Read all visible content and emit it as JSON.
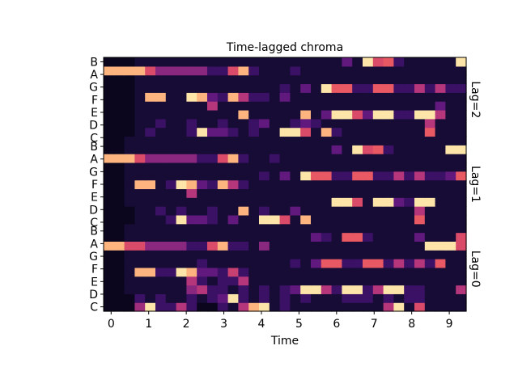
{
  "chart_data": {
    "type": "heatmap",
    "title": "Time-lagged chroma",
    "xlabel": "Time",
    "ylabel": "",
    "colormap": "magma",
    "x_ticks": [
      "0",
      "1",
      "2",
      "3",
      "4",
      "5",
      "6",
      "7",
      "8",
      "9"
    ],
    "x_range": [
      -0.2,
      9.45
    ],
    "y_tick_labels": [
      "C",
      "D",
      "E",
      "F",
      "G",
      "A",
      "B"
    ],
    "panels": [
      {
        "name": "Lag=0"
      },
      {
        "name": "Lag=1"
      },
      {
        "name": "Lag=2"
      }
    ],
    "grid": false,
    "rows": [
      [
        0.05,
        0.05,
        0.05,
        0.45,
        0.95,
        0.2,
        0.2,
        0.5,
        0.2,
        0.05,
        0.05,
        0.2,
        0.1,
        0.5,
        0.85,
        0.95,
        0.1,
        0.2,
        0.1,
        0.1,
        0.1,
        0.1,
        0.1,
        0.1,
        0.1,
        0.1,
        0.1,
        0.5,
        0.95,
        0.1,
        0.6,
        0.1,
        0.1,
        0.1,
        0.1
      ],
      [
        0.05,
        0.05,
        0.05,
        0.2,
        0.1,
        0.2,
        0.1,
        0.1,
        0.2,
        0.1,
        0.2,
        0.3,
        0.95,
        0.2,
        0.1,
        0.2,
        0.1,
        0.2,
        0.1,
        0.2,
        0.1,
        0.1,
        0.1,
        0.2,
        0.2,
        0.2,
        0.1,
        0.2,
        0.1,
        0.2,
        0.2,
        0.1,
        0.1,
        0.1,
        0.1
      ],
      [
        0.05,
        0.05,
        0.1,
        0.1,
        0.1,
        0.1,
        0.1,
        0.1,
        0.4,
        0.5,
        0.2,
        0.2,
        0.1,
        0.2,
        0.1,
        0.2,
        0.1,
        0.2,
        0.3,
        0.95,
        0.95,
        0.5,
        0.2,
        0.95,
        0.95,
        0.2,
        0.5,
        0.95,
        0.95,
        0.2,
        0.2,
        0.1,
        0.1,
        0.1,
        0.5
      ],
      [
        0.05,
        0.05,
        0.1,
        0.1,
        0.1,
        0.1,
        0.1,
        0.1,
        0.5,
        0.2,
        0.1,
        0.2,
        0.2,
        0.5,
        0.1,
        0.1,
        0.1,
        0.1,
        0.1,
        0.1,
        0.1,
        0.1,
        0.1,
        0.1,
        0.1,
        0.1,
        0.1,
        0.1,
        0.1,
        0.1,
        0.1,
        0.1,
        0.1,
        0.1,
        0.1
      ],
      [
        0.05,
        0.05,
        0.1,
        0.85,
        0.85,
        0.2,
        0.2,
        0.95,
        0.85,
        0.3,
        0.3,
        0.2,
        0.55,
        0.2,
        0.1,
        0.1,
        0.1,
        0.1,
        0.1,
        0.1,
        0.1,
        0.1,
        0.1,
        0.1,
        0.1,
        0.1,
        0.1,
        0.1,
        0.1,
        0.1,
        0.1,
        0.1,
        0.1,
        0.1,
        0.1
      ],
      [
        0.05,
        0.05,
        0.1,
        0.1,
        0.1,
        0.1,
        0.1,
        0.1,
        0.1,
        0.2,
        0.1,
        0.1,
        0.1,
        0.1,
        0.1,
        0.1,
        0.1,
        0.1,
        0.2,
        0.1,
        0.3,
        0.65,
        0.65,
        0.2,
        0.2,
        0.65,
        0.65,
        0.2,
        0.5,
        0.2,
        0.5,
        0.2,
        0.65,
        0.1,
        0.1
      ],
      [
        0.05,
        0.05,
        0.1,
        0.1,
        0.1,
        0.1,
        0.1,
        0.1,
        0.1,
        0.1,
        0.1,
        0.1,
        0.1,
        0.1,
        0.1,
        0.1,
        0.1,
        0.1,
        0.1,
        0.1,
        0.1,
        0.1,
        0.1,
        0.1,
        0.1,
        0.1,
        0.1,
        0.1,
        0.1,
        0.1,
        0.1,
        0.1,
        0.1,
        0.1,
        0.1
      ],
      [
        0.85,
        0.85,
        0.6,
        0.6,
        0.4,
        0.4,
        0.4,
        0.4,
        0.2,
        0.2,
        0.6,
        0.85,
        0.2,
        0.2,
        0.1,
        0.4,
        0.1,
        0.1,
        0.1,
        0.1,
        0.1,
        0.1,
        0.1,
        0.1,
        0.1,
        0.1,
        0.1,
        0.1,
        0.1,
        0.1,
        0.1,
        0.95,
        0.95,
        0.95,
        0.6
      ],
      [
        0.05,
        0.05,
        0.1,
        0.1,
        0.1,
        0.1,
        0.1,
        0.1,
        0.1,
        0.1,
        0.1,
        0.1,
        0.1,
        0.1,
        0.1,
        0.1,
        0.1,
        0.1,
        0.1,
        0.1,
        0.3,
        0.2,
        0.1,
        0.65,
        0.65,
        0.2,
        0.1,
        0.1,
        0.1,
        0.1,
        0.3,
        0.1,
        0.1,
        0.1,
        0.6
      ],
      [
        0.05,
        0.05,
        0.1,
        0.1,
        0.1,
        0.1,
        0.1,
        0.1,
        0.1,
        0.1,
        0.1,
        0.1,
        0.1,
        0.1,
        0.1,
        0.1,
        0.1,
        0.1,
        0.1,
        0.1,
        0.1,
        0.1,
        0.1,
        0.1,
        0.1,
        0.1,
        0.1,
        0.1,
        0.1,
        0.1,
        0.1,
        0.1,
        0.1,
        0.1,
        0.1
      ],
      [
        0.05,
        0.05,
        0.05,
        0.1,
        0.1,
        0.1,
        0.2,
        0.95,
        0.3,
        0.3,
        0.2,
        0.1,
        0.3,
        0.1,
        0.1,
        0.95,
        0.95,
        0.6,
        0.1,
        0.85,
        0.1,
        0.1,
        0.1,
        0.1,
        0.1,
        0.1,
        0.1,
        0.1,
        0.1,
        0.1,
        0.65,
        0.1,
        0.1,
        0.1,
        0.1
      ],
      [
        0.05,
        0.05,
        0.05,
        0.1,
        0.1,
        0.2,
        0.1,
        0.2,
        0.1,
        0.1,
        0.2,
        0.1,
        0.1,
        0.85,
        0.1,
        0.2,
        0.1,
        0.1,
        0.3,
        0.1,
        0.1,
        0.1,
        0.1,
        0.1,
        0.1,
        0.1,
        0.1,
        0.1,
        0.1,
        0.1,
        0.5,
        0.1,
        0.1,
        0.1,
        0.1
      ],
      [
        0.05,
        0.05,
        0.1,
        0.1,
        0.1,
        0.1,
        0.1,
        0.1,
        0.1,
        0.1,
        0.1,
        0.1,
        0.1,
        0.1,
        0.1,
        0.1,
        0.1,
        0.1,
        0.1,
        0.1,
        0.1,
        0.1,
        0.95,
        0.95,
        0.6,
        0.1,
        0.95,
        0.95,
        0.3,
        0.2,
        0.95,
        0.95,
        0.1,
        0.1,
        0.1
      ],
      [
        0.05,
        0.05,
        0.1,
        0.1,
        0.1,
        0.1,
        0.1,
        0.1,
        0.5,
        0.1,
        0.1,
        0.1,
        0.1,
        0.1,
        0.1,
        0.1,
        0.1,
        0.1,
        0.1,
        0.1,
        0.1,
        0.1,
        0.1,
        0.1,
        0.1,
        0.1,
        0.1,
        0.1,
        0.1,
        0.1,
        0.1,
        0.1,
        0.1,
        0.1,
        0.1
      ],
      [
        0.05,
        0.05,
        0.1,
        0.85,
        0.85,
        0.1,
        0.2,
        0.95,
        0.85,
        0.3,
        0.2,
        0.85,
        0.5,
        0.2,
        0.1,
        0.1,
        0.1,
        0.1,
        0.1,
        0.1,
        0.1,
        0.1,
        0.1,
        0.1,
        0.1,
        0.1,
        0.1,
        0.1,
        0.1,
        0.1,
        0.1,
        0.1,
        0.1,
        0.1,
        0.1
      ],
      [
        0.05,
        0.05,
        0.1,
        0.1,
        0.1,
        0.1,
        0.1,
        0.1,
        0.1,
        0.1,
        0.1,
        0.1,
        0.1,
        0.1,
        0.1,
        0.2,
        0.1,
        0.3,
        0.1,
        0.95,
        0.65,
        0.65,
        0.2,
        0.2,
        0.65,
        0.65,
        0.2,
        0.2,
        0.5,
        0.2,
        0.5,
        0.2,
        0.2,
        0.3,
        0.65
      ],
      [
        0.05,
        0.05,
        0.1,
        0.1,
        0.1,
        0.1,
        0.1,
        0.1,
        0.1,
        0.1,
        0.1,
        0.1,
        0.1,
        0.1,
        0.1,
        0.1,
        0.1,
        0.1,
        0.1,
        0.1,
        0.1,
        0.1,
        0.1,
        0.1,
        0.1,
        0.1,
        0.1,
        0.1,
        0.1,
        0.1,
        0.1,
        0.1,
        0.1,
        0.1,
        0.1
      ],
      [
        0.85,
        0.85,
        0.85,
        0.6,
        0.4,
        0.4,
        0.4,
        0.4,
        0.4,
        0.2,
        0.2,
        0.6,
        0.85,
        0.2,
        0.1,
        0.1,
        0.2,
        0.1,
        0.1,
        0.1,
        0.1,
        0.1,
        0.1,
        0.1,
        0.1,
        0.1,
        0.1,
        0.1,
        0.1,
        0.1,
        0.1,
        0.1,
        0.1,
        0.1,
        0.1
      ],
      [
        0.05,
        0.05,
        0.1,
        0.1,
        0.1,
        0.1,
        0.1,
        0.1,
        0.1,
        0.1,
        0.1,
        0.1,
        0.1,
        0.1,
        0.1,
        0.1,
        0.1,
        0.1,
        0.1,
        0.1,
        0.1,
        0.1,
        0.3,
        0.1,
        0.95,
        0.6,
        0.65,
        0.2,
        0.1,
        0.1,
        0.1,
        0.1,
        0.1,
        0.95,
        0.95
      ],
      [
        0.05,
        0.05,
        0.1,
        0.1,
        0.1,
        0.1,
        0.1,
        0.1,
        0.1,
        0.1,
        0.1,
        0.1,
        0.1,
        0.1,
        0.1,
        0.1,
        0.1,
        0.1,
        0.1,
        0.1,
        0.1,
        0.1,
        0.1,
        0.1,
        0.1,
        0.1,
        0.1,
        0.1,
        0.1,
        0.1,
        0.1,
        0.1,
        0.1,
        0.1,
        0.1
      ],
      [
        0.05,
        0.05,
        0.05,
        0.1,
        0.2,
        0.1,
        0.1,
        0.1,
        0.2,
        0.95,
        0.3,
        0.3,
        0.2,
        0.1,
        0.2,
        0.1,
        0.1,
        0.95,
        0.95,
        0.6,
        0.1,
        0.85,
        0.2,
        0.1,
        0.1,
        0.1,
        0.1,
        0.1,
        0.1,
        0.1,
        0.1,
        0.65,
        0.1,
        0.1,
        0.1
      ],
      [
        0.05,
        0.05,
        0.05,
        0.1,
        0.1,
        0.2,
        0.1,
        0.1,
        0.2,
        0.1,
        0.1,
        0.2,
        0.1,
        0.1,
        0.2,
        0.3,
        0.1,
        0.1,
        0.2,
        0.3,
        0.2,
        0.1,
        0.1,
        0.1,
        0.1,
        0.1,
        0.1,
        0.1,
        0.1,
        0.1,
        0.1,
        0.5,
        0.1,
        0.1,
        0.1
      ],
      [
        0.05,
        0.05,
        0.05,
        0.1,
        0.1,
        0.1,
        0.1,
        0.1,
        0.1,
        0.1,
        0.1,
        0.1,
        0.1,
        0.85,
        0.1,
        0.1,
        0.1,
        0.1,
        0.1,
        0.85,
        0.1,
        0.3,
        0.95,
        0.95,
        0.6,
        0.3,
        0.95,
        0.95,
        0.2,
        0.2,
        0.95,
        0.95,
        0.5,
        0.1,
        0.1
      ],
      [
        0.05,
        0.05,
        0.05,
        0.1,
        0.1,
        0.1,
        0.1,
        0.1,
        0.1,
        0.1,
        0.5,
        0.1,
        0.1,
        0.1,
        0.1,
        0.1,
        0.1,
        0.1,
        0.1,
        0.1,
        0.1,
        0.1,
        0.1,
        0.1,
        0.1,
        0.1,
        0.1,
        0.1,
        0.1,
        0.1,
        0.1,
        0.1,
        0.3,
        0.1,
        0.1
      ],
      [
        0.05,
        0.05,
        0.05,
        0.1,
        0.85,
        0.85,
        0.1,
        0.1,
        0.95,
        0.85,
        0.3,
        0.2,
        0.85,
        0.5,
        0.2,
        0.2,
        0.1,
        0.3,
        0.1,
        0.1,
        0.1,
        0.1,
        0.1,
        0.1,
        0.1,
        0.1,
        0.1,
        0.1,
        0.1,
        0.1,
        0.1,
        0.1,
        0.1,
        0.1,
        0.1
      ],
      [
        0.05,
        0.05,
        0.05,
        0.1,
        0.1,
        0.1,
        0.1,
        0.1,
        0.1,
        0.1,
        0.1,
        0.1,
        0.1,
        0.1,
        0.1,
        0.1,
        0.1,
        0.2,
        0.1,
        0.3,
        0.1,
        0.95,
        0.65,
        0.65,
        0.2,
        0.2,
        0.65,
        0.65,
        0.2,
        0.2,
        0.5,
        0.2,
        0.5,
        0.2,
        0.2
      ],
      [
        0.05,
        0.05,
        0.05,
        0.1,
        0.1,
        0.1,
        0.1,
        0.1,
        0.1,
        0.1,
        0.1,
        0.1,
        0.1,
        0.1,
        0.1,
        0.1,
        0.1,
        0.1,
        0.1,
        0.1,
        0.1,
        0.1,
        0.1,
        0.1,
        0.1,
        0.1,
        0.1,
        0.1,
        0.1,
        0.1,
        0.1,
        0.1,
        0.1,
        0.1,
        0.1
      ],
      [
        0.85,
        0.85,
        0.85,
        0.85,
        0.6,
        0.4,
        0.4,
        0.4,
        0.4,
        0.4,
        0.2,
        0.2,
        0.6,
        0.85,
        0.2,
        0.1,
        0.1,
        0.1,
        0.2,
        0.1,
        0.1,
        0.1,
        0.1,
        0.1,
        0.1,
        0.1,
        0.1,
        0.1,
        0.1,
        0.1,
        0.1,
        0.1,
        0.1,
        0.1,
        0.1
      ],
      [
        0.05,
        0.05,
        0.05,
        0.1,
        0.1,
        0.1,
        0.1,
        0.1,
        0.1,
        0.1,
        0.1,
        0.1,
        0.1,
        0.1,
        0.1,
        0.1,
        0.1,
        0.1,
        0.1,
        0.1,
        0.1,
        0.1,
        0.1,
        0.3,
        0.1,
        0.95,
        0.6,
        0.65,
        0.2,
        0.1,
        0.1,
        0.1,
        0.1,
        0.1,
        0.95
      ]
    ]
  }
}
